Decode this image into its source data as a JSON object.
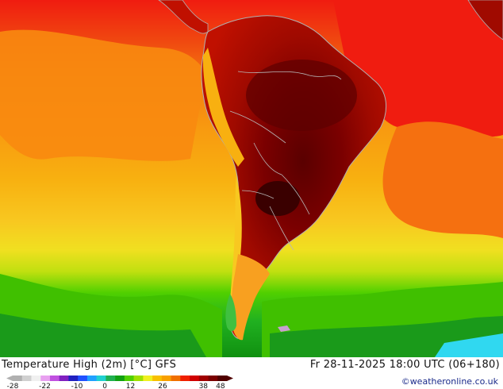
{
  "map": {
    "title": "Temperature High (2m) [°C] GFS",
    "datetime": "Fr 28-11-2025 18:00 UTC (06+180)",
    "credit": "©weatheronline.co.uk",
    "region": "South America",
    "legend": {
      "ticks": [
        "-28",
        "-22",
        "-10",
        "0",
        "12",
        "26",
        "38",
        "48"
      ],
      "colors": [
        "#b0b0b0",
        "#d0d0d0",
        "#f0f0f0",
        "#e8a0f0",
        "#c050e0",
        "#8020c0",
        "#2020c0",
        "#2050ff",
        "#20a0ff",
        "#20d0d0",
        "#20b050",
        "#10a010",
        "#50d000",
        "#a0e000",
        "#f0f020",
        "#f8c000",
        "#f8a000",
        "#f07000",
        "#f02000",
        "#d00000",
        "#a00000",
        "#7a0000",
        "#500000"
      ]
    }
  }
}
